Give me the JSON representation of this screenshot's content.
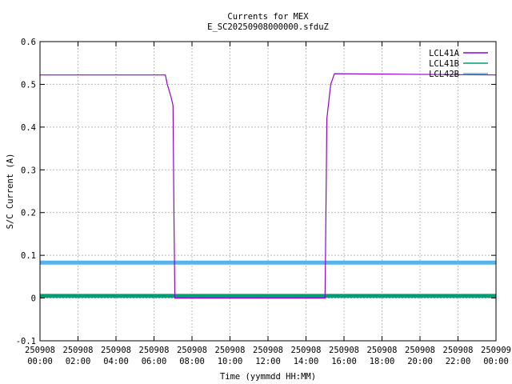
{
  "chart_data": {
    "type": "line",
    "title": "Currents for MEX",
    "subtitle": "E_SC20250908000000.sfduZ",
    "xlabel": "Time (yymmdd HH:MM)",
    "ylabel": "S/C Current (A)",
    "xlim": [
      0,
      24
    ],
    "ylim": [
      -0.1,
      0.6
    ],
    "grid": true,
    "legend_position": "top-right",
    "x_ticks": [
      {
        "value": 0,
        "date": "250908",
        "time": "00:00"
      },
      {
        "value": 2,
        "date": "250908",
        "time": "02:00"
      },
      {
        "value": 4,
        "date": "250908",
        "time": "04:00"
      },
      {
        "value": 6,
        "date": "250908",
        "time": "06:00"
      },
      {
        "value": 8,
        "date": "250908",
        "time": "08:00"
      },
      {
        "value": 10,
        "date": "250908",
        "time": "10:00"
      },
      {
        "value": 12,
        "date": "250908",
        "time": "12:00"
      },
      {
        "value": 14,
        "date": "250908",
        "time": "14:00"
      },
      {
        "value": 16,
        "date": "250908",
        "time": "16:00"
      },
      {
        "value": 18,
        "date": "250908",
        "time": "18:00"
      },
      {
        "value": 20,
        "date": "250908",
        "time": "20:00"
      },
      {
        "value": 22,
        "date": "250908",
        "time": "22:00"
      },
      {
        "value": 24,
        "date": "250909",
        "time": "00:00"
      }
    ],
    "y_ticks": [
      "-0.1",
      "0",
      "0.1",
      "0.2",
      "0.3",
      "0.4",
      "0.5",
      "0.6"
    ],
    "series": [
      {
        "name": "LCL41A",
        "color": "#9400d3",
        "x": [
          0,
          6.6,
          6.7,
          6.9,
          7.0,
          7.05,
          7.1,
          15.0,
          15.05,
          15.1,
          15.3,
          15.5,
          24
        ],
        "y": [
          0.522,
          0.522,
          0.5,
          0.47,
          0.45,
          0.2,
          0.0,
          0.0,
          0.2,
          0.42,
          0.5,
          0.525,
          0.522
        ]
      },
      {
        "name": "LCL41B",
        "color": "#009e73",
        "x": [
          0,
          24
        ],
        "y": [
          0.005,
          0.005
        ]
      },
      {
        "name": "LCL42B",
        "color": "#56b4e9",
        "x": [
          0,
          24
        ],
        "y": [
          0.083,
          0.083
        ]
      }
    ]
  }
}
